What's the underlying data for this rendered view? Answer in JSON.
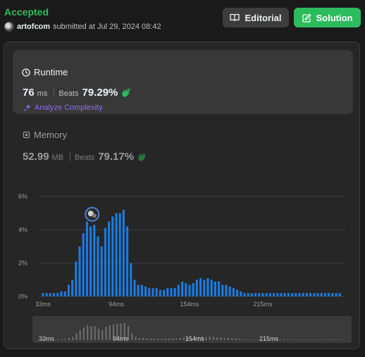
{
  "header": {
    "status": "Accepted",
    "username": "artofcom",
    "submitted_text": "submitted at Jul 29, 2024 08:42",
    "editorial_label": "Editorial",
    "solution_label": "Solution",
    "editorial_icon": "book-icon",
    "solution_icon": "edit-icon"
  },
  "runtime": {
    "title": "Runtime",
    "value": "76",
    "unit": "ms",
    "beats_label": "Beats",
    "beats_value": "79.29%",
    "analyze_label": "Analyze Complexity"
  },
  "memory": {
    "title": "Memory",
    "value": "52.99",
    "unit": "MB",
    "beats_label": "Beats",
    "beats_value": "79.17%"
  },
  "colors": {
    "accent_green": "#2cbb5d",
    "bar_blue": "#1a7de3",
    "analyze_purple": "#8d6cf0",
    "mini_bar": "#6b6b6b"
  },
  "chart_data": {
    "type": "bar",
    "ylim": [
      0,
      6
    ],
    "y_ticks": [
      "0%",
      "2%",
      "4%",
      "6%"
    ],
    "x_tick_labels": [
      "33ms",
      "94ms",
      "154ms",
      "215ms"
    ],
    "x_tick_indices": [
      0,
      20,
      40,
      60
    ],
    "values": [
      0.2,
      0.2,
      0.2,
      0.2,
      0.2,
      0.3,
      0.3,
      0.7,
      1.0,
      2.1,
      3.0,
      3.8,
      4.5,
      4.2,
      4.3,
      3.6,
      3.0,
      4.1,
      4.5,
      4.8,
      5.0,
      5.0,
      5.2,
      4.2,
      2.0,
      1.0,
      0.7,
      0.7,
      0.6,
      0.5,
      0.5,
      0.5,
      0.4,
      0.4,
      0.5,
      0.5,
      0.5,
      0.7,
      0.9,
      0.8,
      0.7,
      0.8,
      1.0,
      1.1,
      1.0,
      1.1,
      1.0,
      0.9,
      0.9,
      0.7,
      0.7,
      0.6,
      0.5,
      0.4,
      0.3,
      0.2,
      0.2,
      0.2,
      0.2,
      0.2,
      0.2,
      0.2,
      0.2,
      0.2,
      0.2,
      0.2,
      0.2,
      0.2,
      0.2,
      0.2,
      0.2,
      0.2,
      0.2,
      0.2,
      0.2,
      0.2,
      0.2,
      0.2,
      0.2,
      0.2,
      0.2,
      0.2
    ],
    "highlight_index": 14,
    "highlight_marker": "avatar"
  }
}
